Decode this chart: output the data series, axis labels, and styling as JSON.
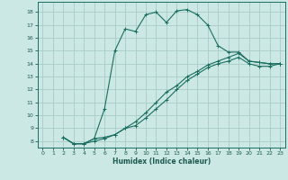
{
  "title": "",
  "xlabel": "Humidex (Indice chaleur)",
  "ylabel": "",
  "bg_color": "#cce8e4",
  "grid_color": "#a8ccc8",
  "line_color": "#1a6e60",
  "xlim": [
    -0.5,
    23.5
  ],
  "ylim": [
    7.5,
    18.8
  ],
  "xticks": [
    0,
    1,
    2,
    3,
    4,
    5,
    6,
    7,
    8,
    9,
    10,
    11,
    12,
    13,
    14,
    15,
    16,
    17,
    18,
    19,
    20,
    21,
    22,
    23
  ],
  "yticks": [
    8,
    9,
    10,
    11,
    12,
    13,
    14,
    15,
    16,
    17,
    18
  ],
  "line1_x": [
    2,
    3,
    4,
    5,
    6,
    7,
    8,
    9,
    10,
    11,
    12,
    13,
    14,
    15,
    16,
    17,
    18,
    19,
    20,
    21,
    22,
    23
  ],
  "line1_y": [
    8.3,
    7.8,
    7.8,
    8.2,
    10.5,
    15.0,
    16.7,
    16.5,
    17.8,
    18.0,
    17.2,
    18.1,
    18.2,
    17.8,
    17.0,
    15.4,
    14.9,
    14.9,
    14.2,
    14.1,
    14.0,
    14.0
  ],
  "line2_x": [
    2,
    3,
    4,
    5,
    6,
    7,
    8,
    9,
    10,
    11,
    12,
    13,
    14,
    15,
    16,
    17,
    18,
    19,
    20,
    21,
    22,
    23
  ],
  "line2_y": [
    8.3,
    7.8,
    7.8,
    8.2,
    8.3,
    8.5,
    9.0,
    9.5,
    10.2,
    11.0,
    11.8,
    12.3,
    13.0,
    13.4,
    13.9,
    14.2,
    14.5,
    14.8,
    14.2,
    14.1,
    14.0,
    14.0
  ],
  "line3_x": [
    2,
    3,
    4,
    5,
    6,
    7,
    8,
    9,
    10,
    11,
    12,
    13,
    14,
    15,
    16,
    17,
    18,
    19,
    20,
    21,
    22,
    23
  ],
  "line3_y": [
    8.3,
    7.8,
    7.8,
    8.0,
    8.2,
    8.5,
    9.0,
    9.2,
    9.8,
    10.5,
    11.2,
    12.0,
    12.7,
    13.2,
    13.7,
    14.0,
    14.2,
    14.5,
    14.0,
    13.8,
    13.8,
    14.0
  ]
}
